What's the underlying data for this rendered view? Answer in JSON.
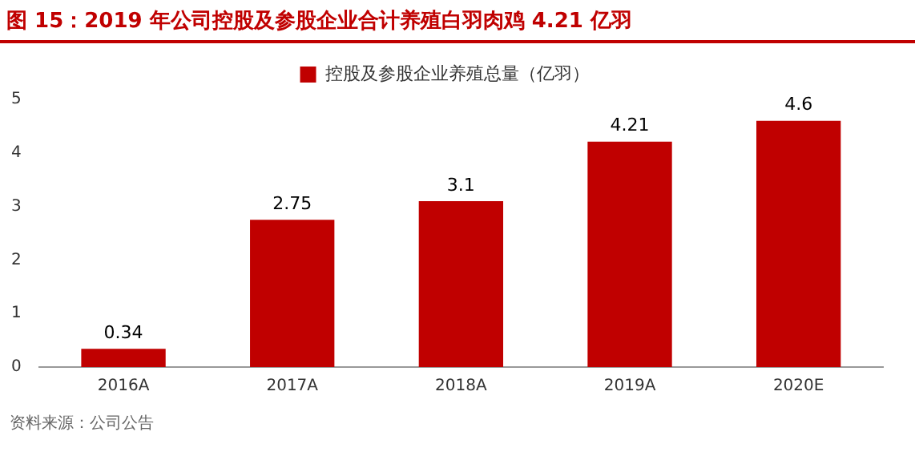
{
  "chart_data": {
    "type": "bar",
    "title": "图 15：2019 年公司控股及参股企业合计养殖白羽肉鸡 4.21 亿羽",
    "categories": [
      "2016A",
      "2017A",
      "2018A",
      "2019A",
      "2020E"
    ],
    "series": [
      {
        "name": "控股及参股企业养殖总量（亿羽）",
        "color": "#c00000",
        "values": [
          0.34,
          2.75,
          3.1,
          4.21,
          4.6
        ]
      }
    ],
    "ylim": [
      0,
      5
    ],
    "yticks": [
      0,
      1,
      2,
      3,
      4,
      5
    ],
    "grid": false,
    "legend": "top",
    "data_labels": true,
    "annotations": [
      "资料来源：公司公告"
    ]
  }
}
